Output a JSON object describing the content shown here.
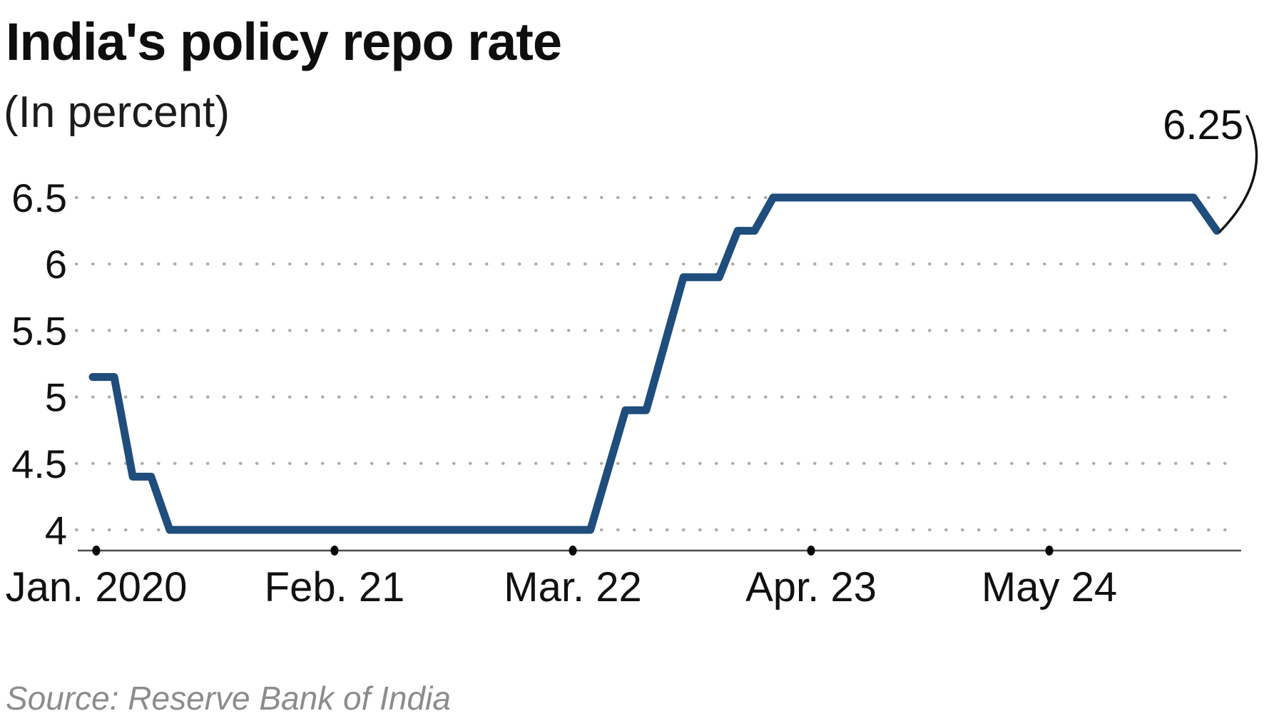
{
  "chart_data": {
    "type": "line",
    "title": "India's policy repo rate",
    "subtitle": "(In percent)",
    "source": "Source: Reserve Bank of India",
    "grid": "dotted-horizontal",
    "legend": "none",
    "x_axis": {
      "tick_labels": [
        "Jan. 2020",
        "Feb. 21",
        "Mar. 22",
        "Apr. 23",
        "May 24"
      ],
      "tick_positions_years_from_2020": [
        0,
        1,
        2,
        3,
        4
      ],
      "range_years_from_2020": [
        -0.09,
        4.8
      ]
    },
    "y_axis": {
      "ticks": [
        4,
        4.5,
        5,
        5.5,
        6,
        6.5
      ],
      "tick_labels": [
        "4",
        "4.5",
        "5",
        "5.5",
        "6",
        "6.5"
      ],
      "range": [
        4,
        6.5
      ]
    },
    "series": [
      {
        "name": "Policy repo rate (percent)",
        "color": "#1f4d7c",
        "points": [
          {
            "t": -0.015,
            "value": 5.15
          },
          {
            "t": 0.075,
            "value": 5.15
          },
          {
            "t": 0.153,
            "value": 4.4
          },
          {
            "t": 0.23,
            "value": 4.4
          },
          {
            "t": 0.308,
            "value": 4.0
          },
          {
            "t": 2.074,
            "value": 4.0
          },
          {
            "t": 2.221,
            "value": 4.9
          },
          {
            "t": 2.308,
            "value": 4.9
          },
          {
            "t": 2.464,
            "value": 5.9
          },
          {
            "t": 2.614,
            "value": 5.9
          },
          {
            "t": 2.692,
            "value": 6.25
          },
          {
            "t": 2.763,
            "value": 6.25
          },
          {
            "t": 2.841,
            "value": 6.5
          },
          {
            "t": 4.605,
            "value": 6.5
          },
          {
            "t": 4.703,
            "value": 6.25
          }
        ]
      }
    ],
    "annotation": {
      "label": "6.25",
      "value": 6.25,
      "target": "last point of series"
    }
  },
  "colors": {
    "line": "#1f4d7c",
    "grid_dots": "#ababab",
    "axis": "#4a4a4a",
    "tick_dot": "#050505",
    "label_text": "#111111",
    "title_text": "#0e0e0e",
    "subtitle_text": "#1c1c1c",
    "source_text": "#8c8c8c",
    "background": "#ffffff"
  }
}
